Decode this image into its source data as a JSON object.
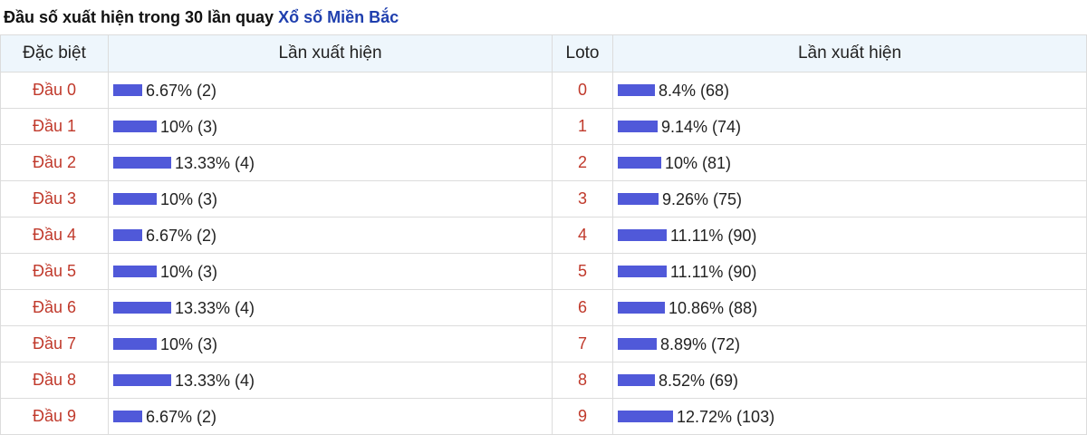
{
  "heading": {
    "prefix": "Đầu số xuất hiện trong 30 lần quay ",
    "link": "Xổ số Miền Bắc"
  },
  "columns": {
    "special": "Đặc biệt",
    "appear_left": "Lần xuất hiện",
    "loto": "Loto",
    "appear_right": "Lần xuất hiện"
  },
  "colors": {
    "bar": "#5059d9",
    "label": "#c0392b",
    "link": "#1f3fae",
    "header_bg": "#eef6fc"
  },
  "special_rows": [
    {
      "label": "Đầu 0",
      "percent": 6.67,
      "text": "6.67% (2)"
    },
    {
      "label": "Đầu 1",
      "percent": 10,
      "text": "10% (3)"
    },
    {
      "label": "Đầu 2",
      "percent": 13.33,
      "text": "13.33% (4)"
    },
    {
      "label": "Đầu 3",
      "percent": 10,
      "text": "10% (3)"
    },
    {
      "label": "Đầu 4",
      "percent": 6.67,
      "text": "6.67% (2)"
    },
    {
      "label": "Đầu 5",
      "percent": 10,
      "text": "10% (3)"
    },
    {
      "label": "Đầu 6",
      "percent": 13.33,
      "text": "13.33% (4)"
    },
    {
      "label": "Đầu 7",
      "percent": 10,
      "text": "10% (3)"
    },
    {
      "label": "Đầu 8",
      "percent": 13.33,
      "text": "13.33% (4)"
    },
    {
      "label": "Đầu 9",
      "percent": 6.67,
      "text": "6.67% (2)"
    }
  ],
  "loto_rows": [
    {
      "label": "0",
      "percent": 8.4,
      "text": "8.4% (68)"
    },
    {
      "label": "1",
      "percent": 9.14,
      "text": "9.14% (74)"
    },
    {
      "label": "2",
      "percent": 10,
      "text": "10% (81)"
    },
    {
      "label": "3",
      "percent": 9.26,
      "text": "9.26% (75)"
    },
    {
      "label": "4",
      "percent": 11.11,
      "text": "11.11% (90)"
    },
    {
      "label": "5",
      "percent": 11.11,
      "text": "11.11% (90)"
    },
    {
      "label": "6",
      "percent": 10.86,
      "text": "10.86% (88)"
    },
    {
      "label": "7",
      "percent": 8.89,
      "text": "8.89% (72)"
    },
    {
      "label": "8",
      "percent": 8.52,
      "text": "8.52% (69)"
    },
    {
      "label": "9",
      "percent": 12.72,
      "text": "12.72% (103)"
    }
  ]
}
